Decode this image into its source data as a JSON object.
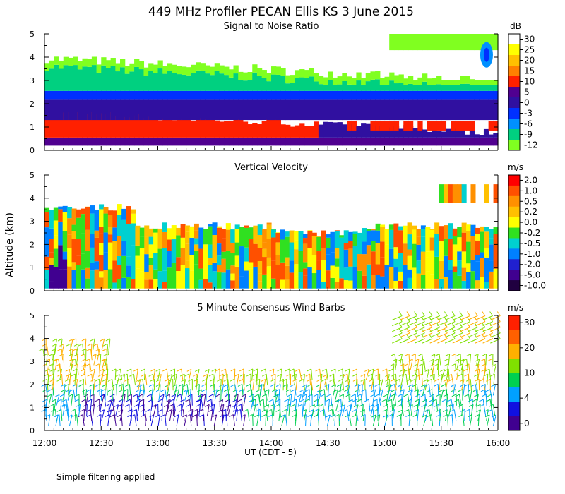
{
  "figure": {
    "title": "449 MHz Profiler PECAN Ellis KS  3 June 2015",
    "y_axis_label": "Altitude (km)",
    "x_axis_label": "UT  (CDT - 5)",
    "footnote": "Simple filtering applied"
  },
  "chart_data": [
    {
      "type": "heatmap",
      "title": "Signal to Noise Ratio",
      "x_ticks": [
        "12:00",
        "12:30",
        "13:00",
        "13:30",
        "14:00",
        "14:30",
        "15:00",
        "15:30",
        "16:00"
      ],
      "y_ticks": [
        "0",
        "1",
        "2",
        "3",
        "4",
        "5"
      ],
      "ylim": [
        0,
        5
      ],
      "xlim": [
        "12:00",
        "16:00"
      ],
      "colorbar": {
        "unit": "dB",
        "labels": [
          "30",
          "25",
          "20",
          "15",
          "10",
          "5",
          "0",
          "-3",
          "-6",
          "-9",
          "-12"
        ],
        "colors": [
          "#ffffff",
          "#ffff00",
          "#ffc000",
          "#ff8000",
          "#ff2000",
          "#500090",
          "#3010a0",
          "#0030ff",
          "#0090ff",
          "#00d080",
          "#80ff20"
        ]
      },
      "bands": [
        {
          "level": "-12",
          "y0": 2.4,
          "y1": 3.0
        },
        {
          "level": "-3",
          "y0": 2.2,
          "y1": 2.6
        },
        {
          "level": "0",
          "y0": 1.4,
          "y1": 2.4
        },
        {
          "level": "10",
          "y0": 0.6,
          "y1": 1.6
        },
        {
          "level": "5",
          "y0": 0.2,
          "y1": 0.6
        }
      ]
    },
    {
      "type": "heatmap",
      "title": "Vertical Velocity",
      "x_ticks": [
        "12:00",
        "12:30",
        "13:00",
        "13:30",
        "14:00",
        "14:30",
        "15:00",
        "15:30",
        "16:00"
      ],
      "y_ticks": [
        "0",
        "1",
        "2",
        "3",
        "4",
        "5"
      ],
      "ylim": [
        0,
        5
      ],
      "xlim": [
        "12:00",
        "16:00"
      ],
      "colorbar": {
        "unit": "m/s",
        "labels": [
          "2.0",
          "1.0",
          "0.5",
          "0.2",
          "0.0",
          "-0.2",
          "-0.5",
          "-1.0",
          "-2.0",
          "-5.0",
          "-10.0"
        ],
        "colors": [
          "#ff0000",
          "#ff5000",
          "#ff9000",
          "#ffc000",
          "#ffff00",
          "#30e020",
          "#00d0d0",
          "#0080ff",
          "#2020d0",
          "#400090",
          "#200040"
        ]
      }
    },
    {
      "type": "scatter",
      "title": "5 Minute Consensus Wind Barbs",
      "x_ticks": [
        "12:00",
        "12:30",
        "13:00",
        "13:30",
        "14:00",
        "14:30",
        "15:00",
        "15:30",
        "16:00"
      ],
      "y_ticks": [
        "0",
        "1",
        "2",
        "3",
        "4",
        "5"
      ],
      "ylim": [
        0,
        5
      ],
      "xlim": [
        "12:00",
        "16:00"
      ],
      "colorbar": {
        "unit": "m/s",
        "labels": [
          "30",
          "20",
          "10",
          "4",
          "0"
        ],
        "colors": [
          "#ff2000",
          "#ff6000",
          "#ffb000",
          "#80e000",
          "#00d050",
          "#00a0ff",
          "#1010e0",
          "#400090"
        ]
      }
    }
  ]
}
